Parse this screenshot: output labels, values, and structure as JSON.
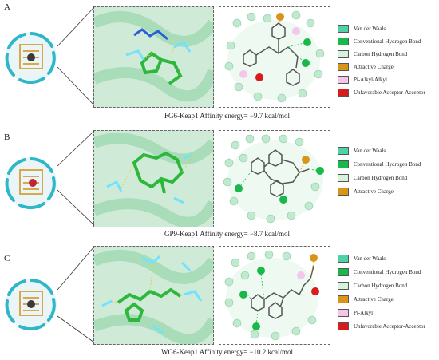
{
  "panels": [
    {
      "letter": "A",
      "caption": "FG6-Keap1 Affinity energy= −9.7 kcal/mol",
      "legend": [
        {
          "label": "Van der Waals",
          "color": "#4fd2a6"
        },
        {
          "label": "Conventional Hydrogen Bond",
          "color": "#19b84a"
        },
        {
          "label": "Carbon Hydrogen Bond",
          "color": "#d6f2dd"
        },
        {
          "label": "Attractive Charge",
          "color": "#d8951a"
        },
        {
          "label": "Pi-Alkyl/Alkyl",
          "color": "#f3c6ea"
        },
        {
          "label": "Unfavorable Acceptor-Acceptor",
          "color": "#d81b1b"
        }
      ]
    },
    {
      "letter": "B",
      "caption": "GP9-Keap1 Affinity energy= −8.7 kcal/mol",
      "legend": [
        {
          "label": "Van der Waals",
          "color": "#4fd2a6"
        },
        {
          "label": "Conventional Hydrogen Bond",
          "color": "#19b84a"
        },
        {
          "label": "Carbon Hydrogen Bond",
          "color": "#d6f2dd"
        },
        {
          "label": "Attractive Charge",
          "color": "#d8951a"
        }
      ]
    },
    {
      "letter": "C",
      "caption": "WG6-Keap1 Affinity energy= −10.2 kcal/mol",
      "legend": [
        {
          "label": "Van der Waals",
          "color": "#4fd2a6"
        },
        {
          "label": "Conventional Hydrogen Bond",
          "color": "#19b84a"
        },
        {
          "label": "Carbon Hydrogen Bond",
          "color": "#d6f2dd"
        },
        {
          "label": "Attractive Charge",
          "color": "#d8951a"
        },
        {
          "label": "Pi-Alkyl",
          "color": "#f3c6ea"
        },
        {
          "label": "Unfavorable Acceptor-Acceptor",
          "color": "#d81b1b"
        }
      ]
    }
  ]
}
